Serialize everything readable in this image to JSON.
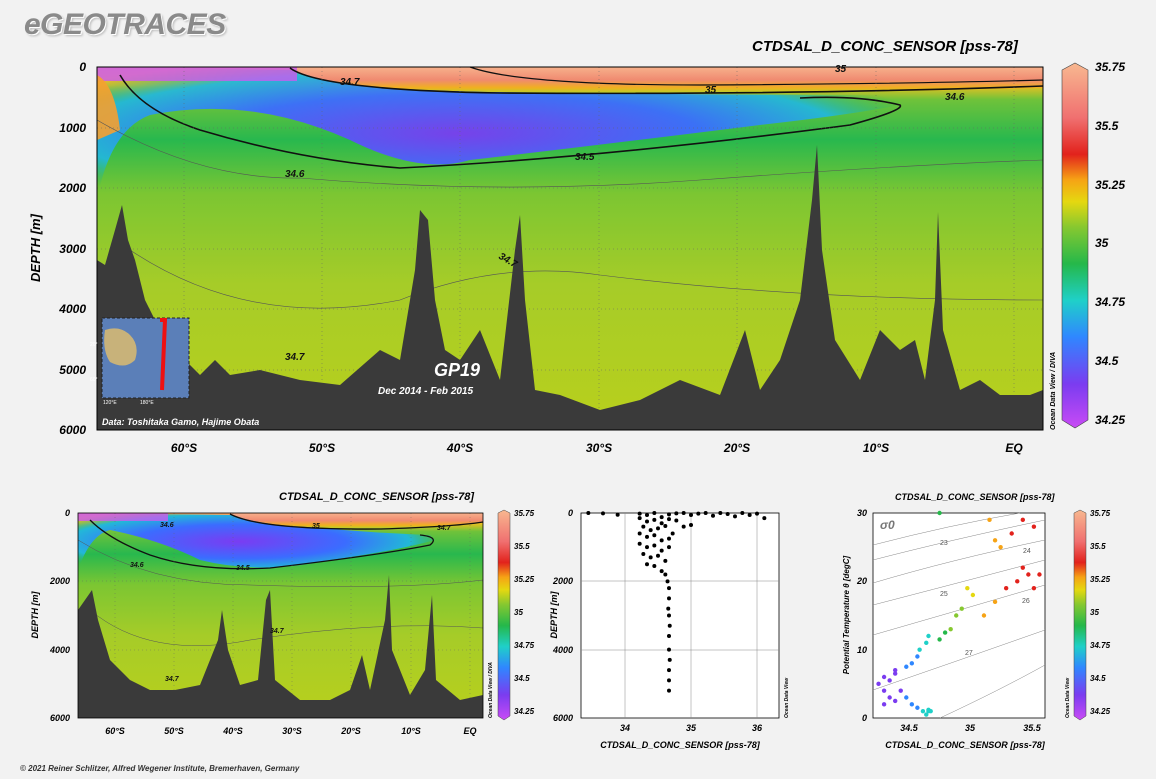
{
  "brand": "eGEOTRACES",
  "footer": "© 2021 Reiner Schlitzer, Alfred Wegener Institute, Bremerhaven, Germany",
  "colors": {
    "land": "#3a3a3a",
    "background": "#f2f2f2"
  },
  "chart_data": [
    {
      "type": "section-contour",
      "title": "CTDSAL_D_CONC_SENSOR [pss-78]",
      "ylabel": "DEPTH [m]",
      "xlabel": "",
      "x_ticks": [
        "60°S",
        "50°S",
        "40°S",
        "30°S",
        "20°S",
        "10°S",
        "EQ"
      ],
      "y_ticks": [
        "0",
        "1000",
        "2000",
        "3000",
        "4000",
        "5000",
        "6000"
      ],
      "ylim": [
        6000,
        0
      ],
      "contour_labels": [
        "34.7",
        "35",
        "34.6",
        "34.5",
        "34.6",
        "34.7",
        "34.7",
        "35"
      ],
      "colorbar_ticks": [
        "35.75",
        "35.5",
        "35.25",
        "35",
        "34.75",
        "34.5",
        "34.25"
      ],
      "colorbar_range": [
        34.25,
        35.75
      ],
      "side_label": "Ocean Data View / DIVA",
      "cruise": "GP19",
      "dates": "Dec 2014 - Feb 2015",
      "credit": "Data: Toshitaka Gamo, Hajime Obata",
      "inset_labels": [
        "20°",
        "60°",
        "120°E",
        "180°E"
      ]
    },
    {
      "type": "section-contour",
      "title": "CTDSAL_D_CONC_SENSOR [pss-78]",
      "ylabel": "DEPTH [m]",
      "x_ticks": [
        "60°S",
        "50°S",
        "40°S",
        "30°S",
        "20°S",
        "10°S",
        "EQ"
      ],
      "y_ticks": [
        "0",
        "2000",
        "4000",
        "6000"
      ],
      "contour_labels": [
        "34.6",
        "35",
        "34.7",
        "34.6",
        "34.5",
        "34.7",
        "34.7"
      ],
      "colorbar_ticks": [
        "35.75",
        "35.5",
        "35.25",
        "35",
        "34.75",
        "34.5",
        "34.25"
      ],
      "side_label": "Ocean Data View / DIVA"
    },
    {
      "type": "scatter",
      "title": "",
      "xlabel": "CTDSAL_D_CONC_SENSOR [pss-78]",
      "ylabel": "DEPTH [m]",
      "xlim": [
        33.5,
        36.2
      ],
      "ylim": [
        6000,
        0
      ],
      "x_ticks": [
        "34",
        "35",
        "36"
      ],
      "y_ticks": [
        "0",
        "2000",
        "4000",
        "6000"
      ],
      "side_label": "Ocean Data View",
      "points": [
        [
          33.6,
          0
        ],
        [
          33.8,
          10
        ],
        [
          34.0,
          50
        ],
        [
          34.3,
          20
        ],
        [
          34.4,
          60
        ],
        [
          34.5,
          0
        ],
        [
          34.6,
          120
        ],
        [
          34.7,
          40
        ],
        [
          34.8,
          10
        ],
        [
          34.9,
          0
        ],
        [
          35.0,
          60
        ],
        [
          35.1,
          20
        ],
        [
          35.2,
          0
        ],
        [
          35.3,
          80
        ],
        [
          35.4,
          0
        ],
        [
          35.5,
          30
        ],
        [
          35.6,
          100
        ],
        [
          35.7,
          0
        ],
        [
          35.8,
          60
        ],
        [
          35.9,
          20
        ],
        [
          36.0,
          150
        ],
        [
          34.3,
          150
        ],
        [
          34.4,
          250
        ],
        [
          34.5,
          200
        ],
        [
          34.6,
          300
        ],
        [
          34.7,
          180
        ],
        [
          34.8,
          220
        ],
        [
          34.9,
          400
        ],
        [
          35.0,
          350
        ],
        [
          34.35,
          400
        ],
        [
          34.45,
          500
        ],
        [
          34.55,
          450
        ],
        [
          34.65,
          380
        ],
        [
          34.75,
          600
        ],
        [
          34.3,
          600
        ],
        [
          34.4,
          700
        ],
        [
          34.5,
          650
        ],
        [
          34.6,
          800
        ],
        [
          34.7,
          750
        ],
        [
          34.3,
          900
        ],
        [
          34.4,
          1000
        ],
        [
          34.5,
          950
        ],
        [
          34.6,
          1100
        ],
        [
          34.7,
          1000
        ],
        [
          34.35,
          1200
        ],
        [
          34.45,
          1300
        ],
        [
          34.55,
          1250
        ],
        [
          34.65,
          1400
        ],
        [
          34.4,
          1500
        ],
        [
          34.5,
          1550
        ],
        [
          34.6,
          1700
        ],
        [
          34.65,
          1800
        ],
        [
          34.68,
          2000
        ],
        [
          34.7,
          2200
        ],
        [
          34.7,
          2500
        ],
        [
          34.69,
          2800
        ],
        [
          34.7,
          3000
        ],
        [
          34.71,
          3300
        ],
        [
          34.7,
          3600
        ],
        [
          34.7,
          4000
        ],
        [
          34.71,
          4300
        ],
        [
          34.7,
          4600
        ],
        [
          34.7,
          4900
        ],
        [
          34.7,
          5200
        ]
      ]
    },
    {
      "type": "scatter",
      "title": "CTDSAL_D_CONC_SENSOR [pss-78]",
      "xlabel": "CTDSAL_D_CONC_SENSOR [pss-78]",
      "ylabel": "Potential Temperature θ [degC]",
      "xlim": [
        34.2,
        35.75
      ],
      "ylim": [
        0,
        30
      ],
      "x_ticks": [
        "34.5",
        "35",
        "35.5"
      ],
      "y_ticks": [
        "0",
        "10",
        "20",
        "30"
      ],
      "sigma_label": "σ0",
      "isopycnal_labels": [
        "23",
        "24",
        "25",
        "26",
        "27"
      ],
      "colorbar_ticks": [
        "35.75",
        "35.5",
        "35.25",
        "35",
        "34.75",
        "34.5",
        "34.25"
      ],
      "side_label": "Ocean Data View",
      "points": [
        [
          34.3,
          2
        ],
        [
          34.35,
          3
        ],
        [
          34.4,
          2.5
        ],
        [
          34.3,
          4
        ],
        [
          34.25,
          5
        ],
        [
          34.3,
          6
        ],
        [
          34.35,
          5.5
        ],
        [
          34.4,
          6.5
        ],
        [
          34.45,
          4
        ],
        [
          34.5,
          3
        ],
        [
          34.55,
          2
        ],
        [
          34.6,
          1.5
        ],
        [
          34.65,
          1
        ],
        [
          34.7,
          1
        ],
        [
          34.68,
          0.5
        ],
        [
          34.7,
          1.2
        ],
        [
          34.72,
          1
        ],
        [
          34.4,
          7
        ],
        [
          34.5,
          7.5
        ],
        [
          34.55,
          8
        ],
        [
          34.6,
          9
        ],
        [
          34.62,
          10
        ],
        [
          34.68,
          11
        ],
        [
          34.7,
          12
        ],
        [
          34.8,
          11.5
        ],
        [
          34.85,
          12.5
        ],
        [
          34.9,
          13
        ],
        [
          34.95,
          15
        ],
        [
          35.0,
          16
        ],
        [
          35.1,
          18
        ],
        [
          35.05,
          19
        ],
        [
          35.2,
          15
        ],
        [
          35.3,
          17
        ],
        [
          35.4,
          19
        ],
        [
          35.5,
          20
        ],
        [
          35.55,
          22
        ],
        [
          35.6,
          21
        ],
        [
          35.65,
          19
        ],
        [
          35.7,
          21
        ],
        [
          35.35,
          25
        ],
        [
          35.45,
          27
        ],
        [
          35.55,
          29
        ],
        [
          35.65,
          28
        ],
        [
          35.3,
          26
        ],
        [
          35.25,
          29
        ],
        [
          34.8,
          30
        ]
      ]
    }
  ]
}
